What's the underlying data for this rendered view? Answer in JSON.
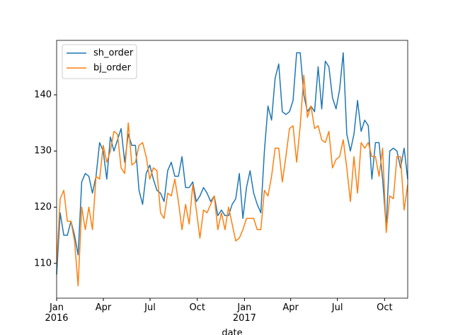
{
  "chart_data": {
    "type": "line",
    "x_label": "date",
    "xlim": [
      "2016-01-01",
      "2017-11-15"
    ],
    "xticks": [
      {
        "value": "2016-01-01",
        "label": "Jan\n2016"
      },
      {
        "value": "2016-04-01",
        "label": "Apr"
      },
      {
        "value": "2016-07-01",
        "label": "Jul"
      },
      {
        "value": "2016-10-01",
        "label": "Oct"
      },
      {
        "value": "2017-01-01",
        "label": "Jan\n2017"
      },
      {
        "value": "2017-04-01",
        "label": "Apr"
      },
      {
        "value": "2017-07-01",
        "label": "Jul"
      },
      {
        "value": "2017-10-01",
        "label": "Oct"
      }
    ],
    "ylim": [
      103.8,
      149.7
    ],
    "yticks": [
      110,
      120,
      130,
      140
    ],
    "grid": false,
    "legend": "upper left",
    "series": [
      {
        "name": "sh_order",
        "color": "#1f77b4",
        "values": [
          108,
          119,
          115,
          115,
          117.5,
          115,
          111.5,
          124.5,
          126,
          125.5,
          122.5,
          125.5,
          131.5,
          130,
          125,
          132.5,
          130,
          132,
          134,
          128,
          133,
          131,
          131,
          123,
          120.5,
          126,
          127.5,
          125,
          123,
          122.5,
          121,
          126.5,
          128,
          125.5,
          125.5,
          129,
          123.5,
          123.5,
          124.5,
          121,
          122,
          123.5,
          122.5,
          121,
          122,
          118.5,
          119.5,
          118.5,
          118.5,
          120.5,
          121.5,
          126,
          118,
          123.5,
          126.5,
          122.5,
          120.5,
          119,
          130,
          138,
          135.5,
          143,
          145.5,
          137,
          136.5,
          137,
          139,
          147.5,
          147.5,
          140,
          137,
          138,
          137,
          145,
          137.5,
          146,
          145,
          139.5,
          137.5,
          141,
          147.5,
          133,
          130,
          133,
          139,
          133.5,
          135.5,
          134.5,
          125,
          131.5,
          131.5,
          125,
          116.5,
          130,
          130.5,
          130,
          127,
          130.5,
          125
        ]
      },
      {
        "name": "bj_order",
        "color": "#ff7f0e",
        "values": [
          110,
          121.5,
          123,
          117.5,
          117.5,
          114,
          106,
          120,
          116,
          120,
          116,
          125.5,
          125,
          131,
          128,
          130,
          133.5,
          133,
          127,
          126,
          135,
          127.5,
          128,
          131,
          131.5,
          129,
          125,
          127,
          126.5,
          119,
          118,
          122.5,
          122,
          125,
          121,
          116,
          120.5,
          117,
          124,
          119.5,
          114.5,
          119.5,
          119,
          120.5,
          122,
          116,
          119,
          116,
          120,
          117,
          114,
          114.5,
          116,
          118,
          118,
          118,
          116,
          116,
          123,
          122,
          125.5,
          130.5,
          130.5,
          124.5,
          129,
          134,
          134.5,
          128,
          134.5,
          143.5,
          136,
          138,
          134,
          134.5,
          132,
          131.5,
          133.5,
          127,
          128.5,
          129,
          132,
          127,
          121,
          129,
          122.5,
          131.5,
          130.5,
          131.5,
          129,
          129,
          125.5,
          130.5,
          115.5,
          122,
          121.5,
          129,
          129,
          119.5,
          124
        ]
      }
    ]
  }
}
